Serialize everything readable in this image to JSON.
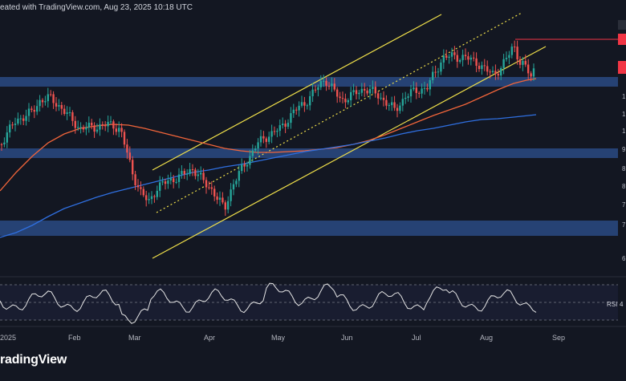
{
  "header": {
    "caption": "eated with TradingView.com, Aug 23, 2025 10:18 UTC"
  },
  "footer": {
    "logo_text": "radingView"
  },
  "chart_data": {
    "type": "candlestick",
    "x_tick_labels": [
      "2025",
      "Feb",
      "Mar",
      "Apr",
      "May",
      "Jun",
      "Jul",
      "Aug",
      "Sep"
    ],
    "price_axis_fragments": [
      "1",
      "1",
      "1",
      "9",
      "8",
      "8",
      "7",
      "7",
      "6"
    ],
    "rsi_label": "RSI",
    "rsi_value_fragment": "4",
    "colors": {
      "background": "#131722",
      "up_candle": "#26a69a",
      "down_candle": "#ef5350",
      "zones": "#2a4a82",
      "channel": "#f0e04a",
      "ma_fast": "#f2653a",
      "ma_slow": "#2f6fe0",
      "rsi_line": "#e6e6e6",
      "resistance": "#f23645"
    },
    "support_resistance_zones": [
      {
        "name": "upper support zone"
      },
      {
        "name": "middle zone"
      },
      {
        "name": "lower zone"
      }
    ]
  }
}
